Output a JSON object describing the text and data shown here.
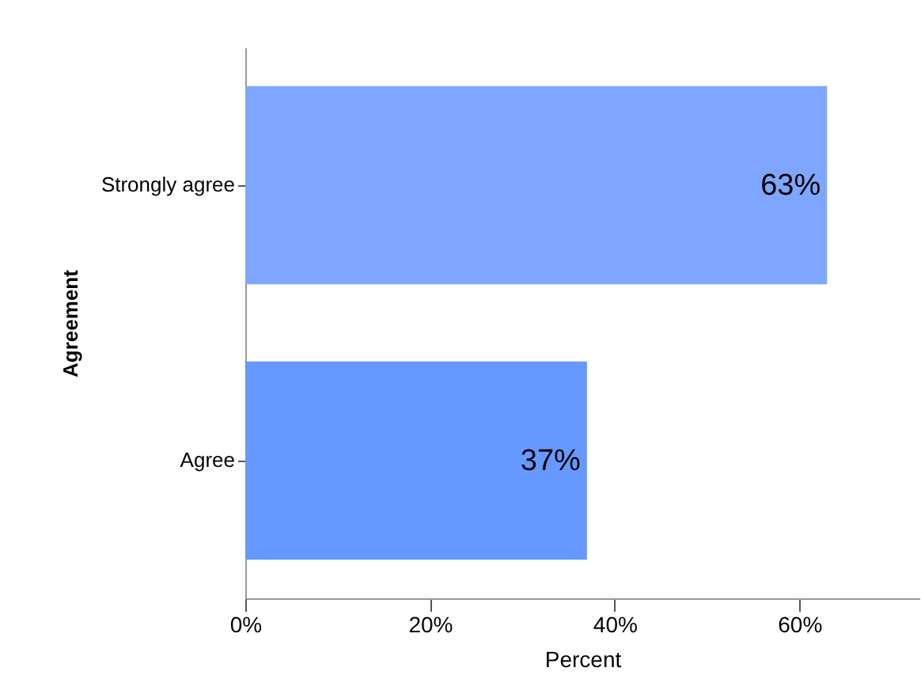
{
  "chart_data": {
    "type": "bar",
    "orientation": "horizontal",
    "xlabel": "Percent",
    "ylabel": "Agreement",
    "categories": [
      "Strongly agree",
      "Agree"
    ],
    "values": [
      63,
      37
    ],
    "colors": [
      "#7fa6ff",
      "#6699ff"
    ],
    "value_labels": [
      "63%",
      "37%"
    ],
    "xlim": [
      0,
      73
    ],
    "xticks": [
      {
        "value": 0,
        "label": "0%"
      },
      {
        "value": 20,
        "label": "20%"
      },
      {
        "value": 40,
        "label": "40%"
      },
      {
        "value": 60,
        "label": "60%"
      }
    ]
  }
}
